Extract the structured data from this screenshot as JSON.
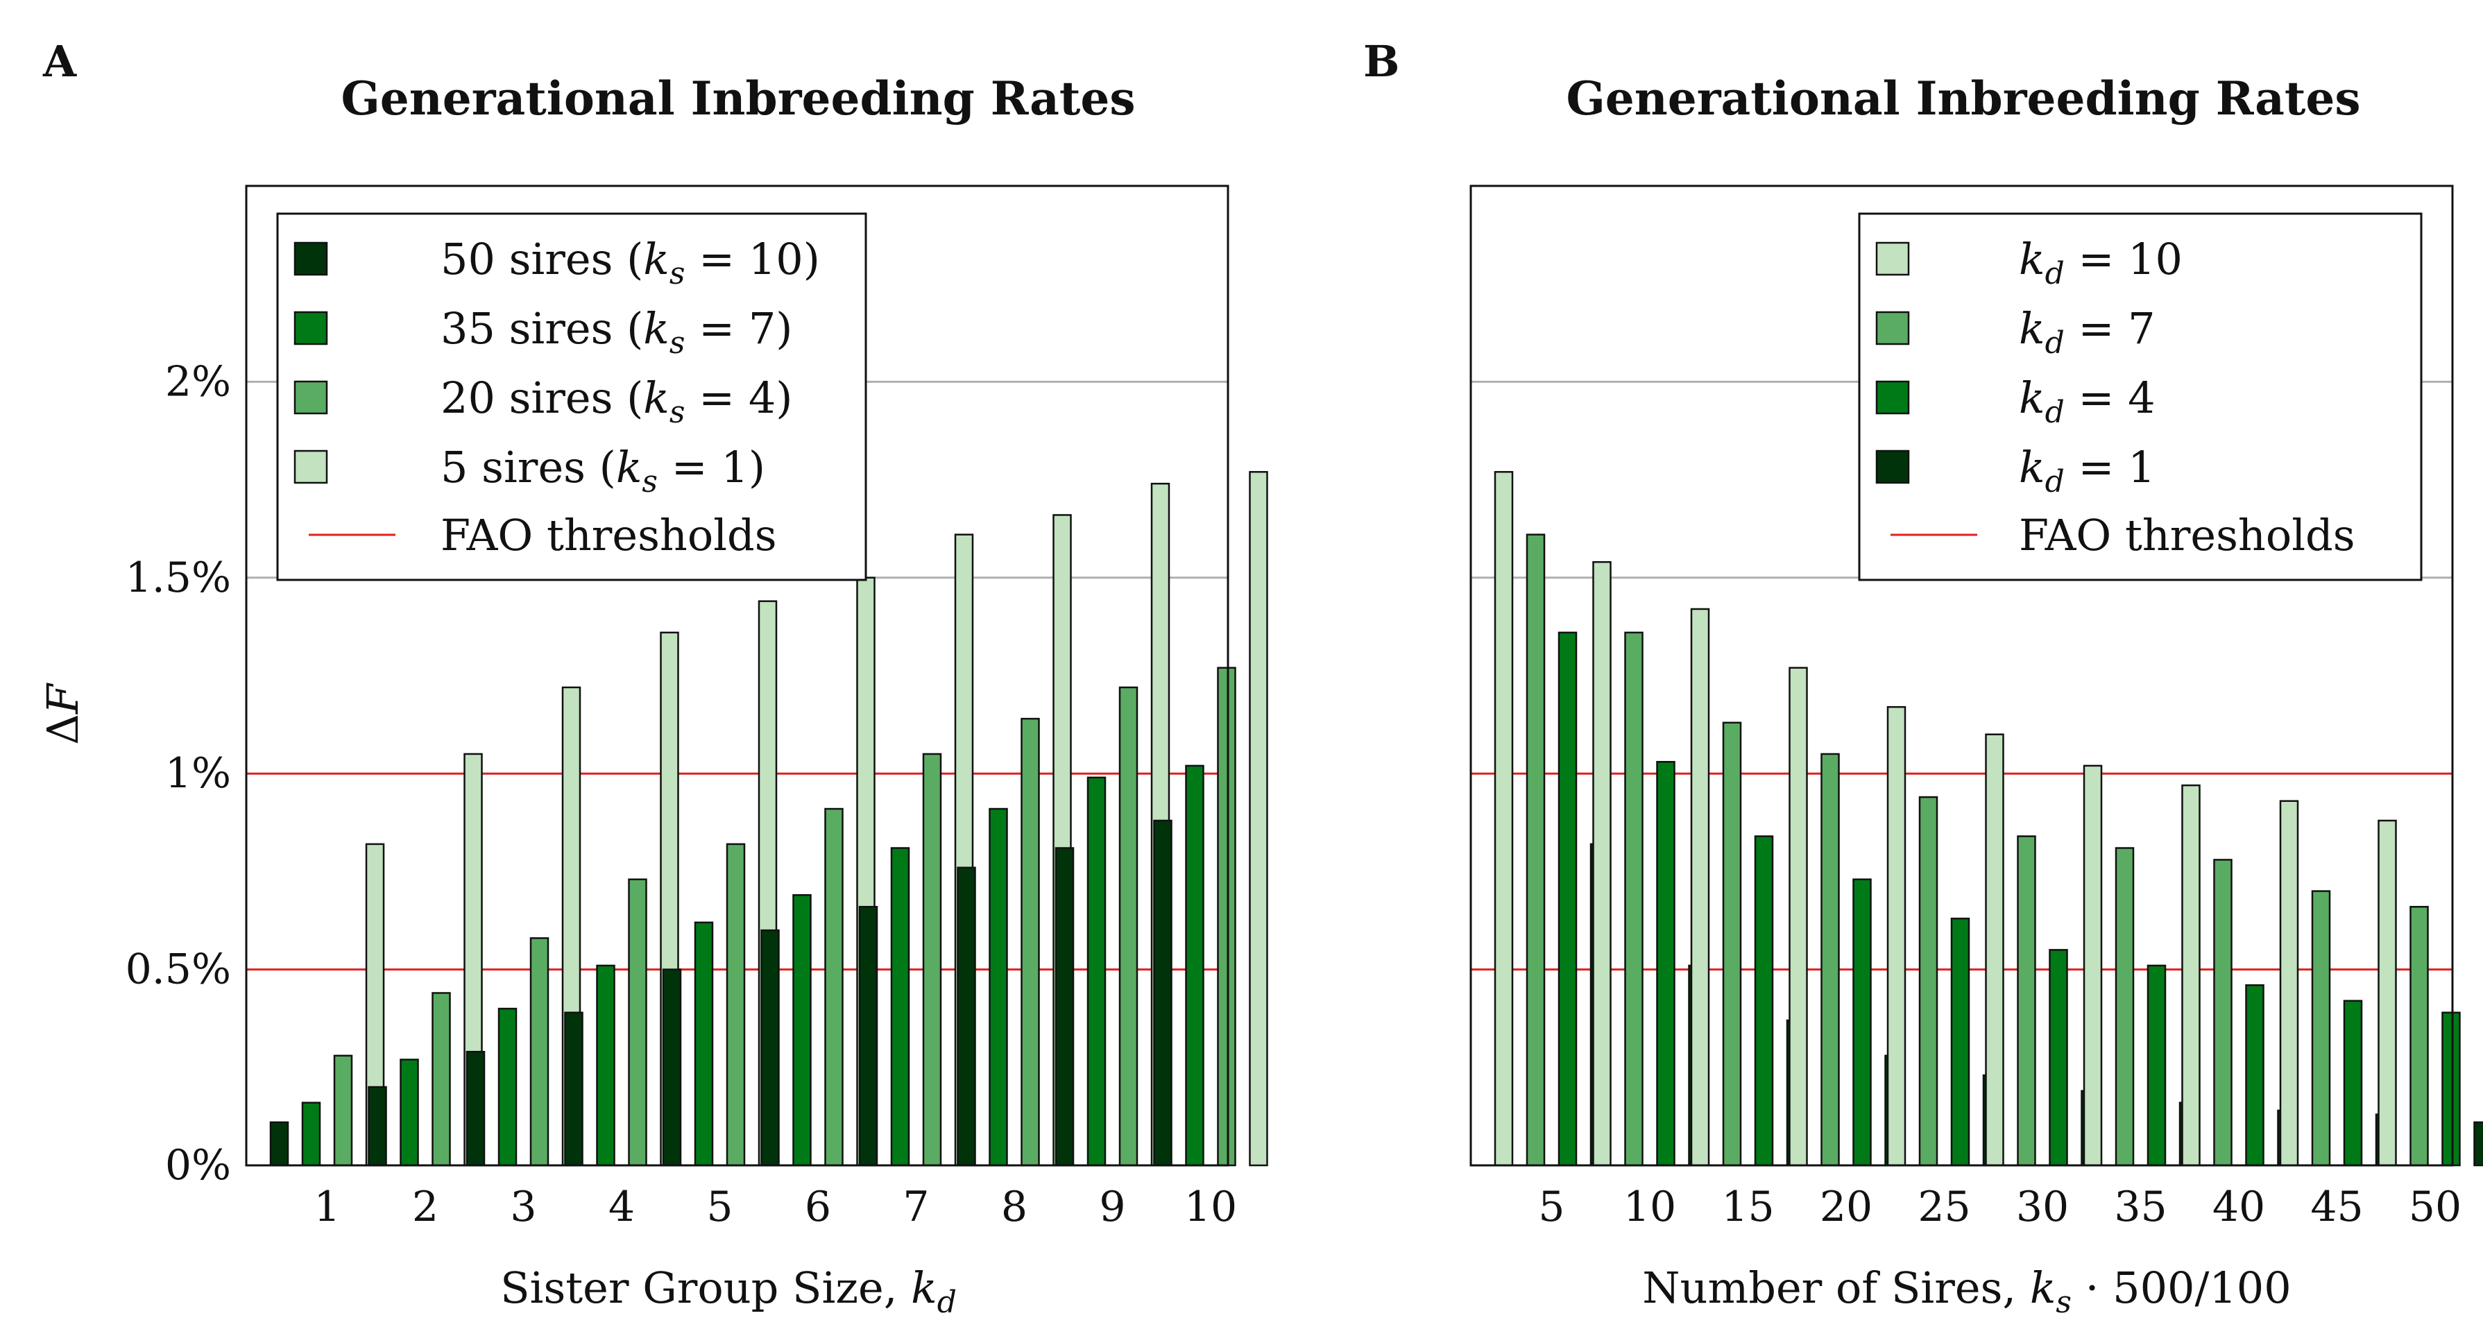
{
  "chart_data": [
    {
      "panel": "A",
      "type": "bar",
      "title": "Generational Inbreeding Rates",
      "xlabel": "Sister Group Size, k_d",
      "ylabel": "ΔF",
      "ylim": [
        0,
        0.025
      ],
      "yticks": [
        {
          "value": 0,
          "label": "0%"
        },
        {
          "value": 0.005,
          "label": "0.5%"
        },
        {
          "value": 0.01,
          "label": "1%"
        },
        {
          "value": 0.015,
          "label": "1.5%"
        },
        {
          "value": 0.02,
          "label": "2%"
        }
      ],
      "categories": [
        "1",
        "2",
        "3",
        "4",
        "5",
        "6",
        "7",
        "8",
        "9",
        "10"
      ],
      "series": [
        {
          "name": "50 sires (k_s = 10)",
          "color": "#00330a",
          "values": [
            0.0011,
            0.002,
            0.0029,
            0.0039,
            0.005,
            0.006,
            0.0066,
            0.0076,
            0.0081,
            0.0088
          ]
        },
        {
          "name": "35 sires (k_s = 7)",
          "color": "#007a17",
          "values": [
            0.0016,
            0.0027,
            0.004,
            0.0051,
            0.0062,
            0.0069,
            0.0081,
            0.0091,
            0.0099,
            0.0102
          ]
        },
        {
          "name": "20 sires (k_s = 4)",
          "color": "#5aac62",
          "values": [
            0.0028,
            0.0044,
            0.0058,
            0.0073,
            0.0082,
            0.0091,
            0.0105,
            0.0114,
            0.0122,
            0.0127
          ]
        },
        {
          "name": "5 sires (k_s = 1)",
          "color": "#c2e2c0",
          "values": [
            0.0082,
            0.0105,
            0.0122,
            0.0136,
            0.0144,
            0.015,
            0.0161,
            0.0166,
            0.0174,
            0.0177
          ]
        }
      ],
      "thresholds": {
        "name": "FAO thresholds",
        "values": [
          0.005,
          0.01
        ],
        "color": "#e02020"
      },
      "grid": true,
      "legend": {
        "position": "top-left",
        "entries": [
          {
            "text": "50 sires (",
            "sym": "k",
            "sub": "s",
            "rest": " = 10)"
          },
          {
            "text": "35 sires (",
            "sym": "k",
            "sub": "s",
            "rest": " = 7)"
          },
          {
            "text": "20 sires (",
            "sym": "k",
            "sub": "s",
            "rest": " = 4)"
          },
          {
            "text": "5 sires (",
            "sym": "k",
            "sub": "s",
            "rest": " = 1)"
          }
        ],
        "line_label": "FAO thresholds"
      }
    },
    {
      "panel": "B",
      "type": "bar",
      "title": "Generational Inbreeding Rates",
      "xlabel": "Number of Sires, k_s · 500/100",
      "ylabel": "",
      "ylim": [
        0,
        0.025
      ],
      "categories": [
        "5",
        "10",
        "15",
        "20",
        "25",
        "30",
        "35",
        "40",
        "45",
        "50"
      ],
      "series": [
        {
          "name": "k_d = 10",
          "color": "#c2e2c0",
          "values": [
            0.0177,
            0.0154,
            0.0142,
            0.0127,
            0.0117,
            0.011,
            0.0102,
            0.0097,
            0.0093,
            0.0088
          ]
        },
        {
          "name": "k_d = 7",
          "color": "#5aac62",
          "values": [
            0.0161,
            0.0136,
            0.0113,
            0.0105,
            0.0094,
            0.0084,
            0.0081,
            0.0078,
            0.007,
            0.0066
          ]
        },
        {
          "name": "k_d = 4",
          "color": "#007a17",
          "values": [
            0.0136,
            0.0103,
            0.0084,
            0.0073,
            0.0063,
            0.0055,
            0.0051,
            0.0046,
            0.0042,
            0.0039
          ]
        },
        {
          "name": "k_d = 1",
          "color": "#00330a",
          "values": [
            0.0082,
            0.0051,
            0.0037,
            0.0028,
            0.0023,
            0.0019,
            0.0016,
            0.0014,
            0.0013,
            0.0011
          ]
        }
      ],
      "thresholds": {
        "name": "FAO thresholds",
        "values": [
          0.005,
          0.01
        ],
        "color": "#e02020"
      },
      "grid": true,
      "legend": {
        "position": "top-right",
        "entries": [
          {
            "text": "",
            "sym": "k",
            "sub": "d",
            "rest": " = 10"
          },
          {
            "text": "",
            "sym": "k",
            "sub": "d",
            "rest": " = 7"
          },
          {
            "text": "",
            "sym": "k",
            "sub": "d",
            "rest": " = 4"
          },
          {
            "text": "",
            "sym": "k",
            "sub": "d",
            "rest": " = 1"
          }
        ],
        "line_label": "FAO thresholds"
      }
    }
  ],
  "labels": {
    "panel_a": "A",
    "panel_b": "B",
    "title_a": "Generational Inbreeding Rates",
    "title_b": "Generational Inbreeding Rates",
    "ylabel_delta": "Δ",
    "ylabel_f": "F",
    "xlabel_a_text": "Sister Group Size, ",
    "xlabel_a_sym": "k",
    "xlabel_a_sub": "d",
    "xlabel_b_text": "Number of Sires, ",
    "xlabel_b_sym": "k",
    "xlabel_b_sub": "s",
    "xlabel_b_rest": " · 500/100"
  }
}
